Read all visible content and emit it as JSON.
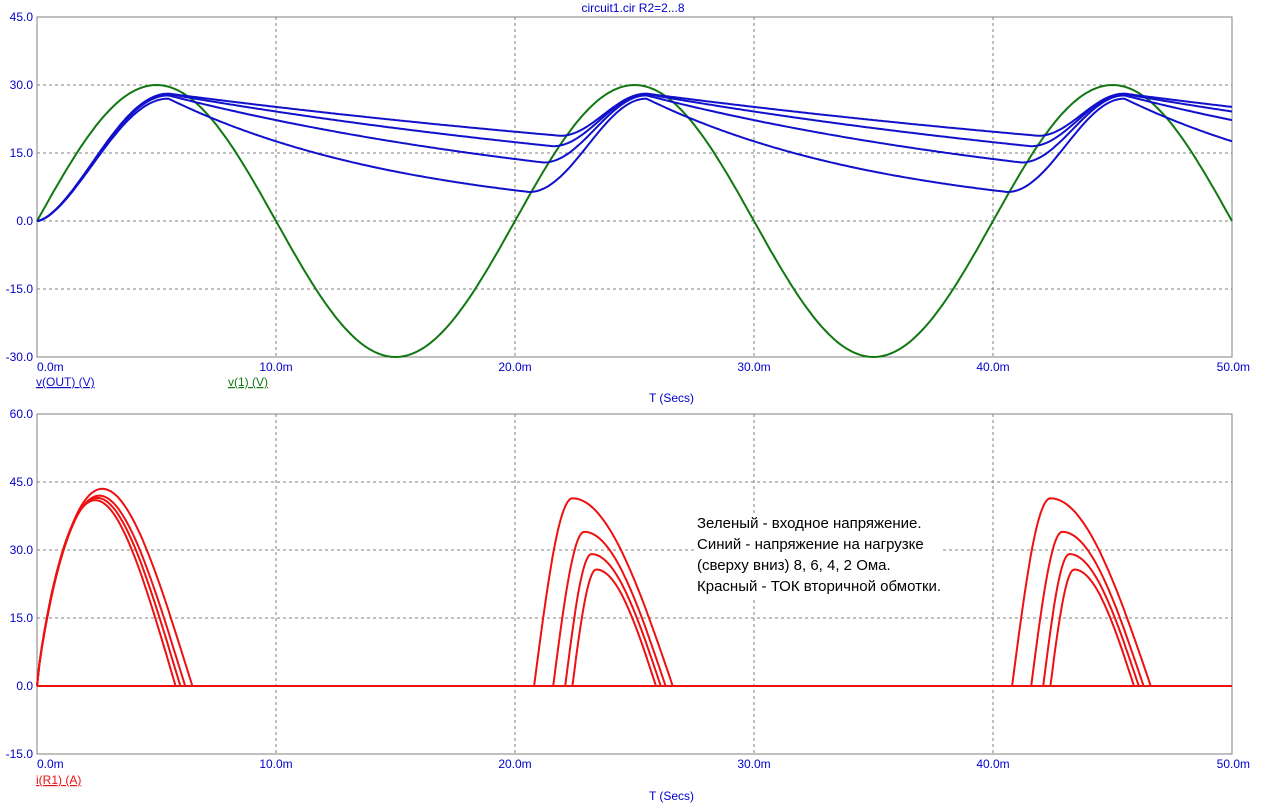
{
  "title": "circuit1.cir R2=2...8",
  "colors": {
    "axis_text": "#0000cc",
    "grid": "#808080",
    "frame": "#808080",
    "blue": "#1111cc",
    "green": "#117711",
    "red": "#ee1111"
  },
  "note_lines": [
    "Зеленый - входное напряжение.",
    "Синий - напряжение на нагрузке",
    "(сверху вниз) 8, 6, 4, 2 Ома.",
    "Красный - ТОК вторичной обмотки."
  ],
  "chart_data": [
    {
      "type": "line",
      "title": "circuit1.cir R2=2...8",
      "xlabel": "T (Secs)",
      "xlim": [
        0,
        0.05
      ],
      "ylim": [
        -30,
        45
      ],
      "xticks": [
        "0.0m",
        "10.0m",
        "20.0m",
        "30.0m",
        "40.0m",
        "50.0m"
      ],
      "yticks": [
        "45.0",
        "30.0",
        "15.0",
        "0.0",
        "-15.0",
        "-30.0"
      ],
      "legend": [
        {
          "label": "v(OUT) (V)",
          "color": "#1111cc"
        },
        {
          "label": "v(1) (V)",
          "color": "#117711"
        }
      ],
      "grid": true,
      "series": [
        {
          "name": "v(1) (V)",
          "color": "#117711",
          "model": "sine",
          "amplitude": 30,
          "frequency": 50
        },
        {
          "name": "v(OUT) (V)",
          "color": "#1111cc",
          "model": "rectifier_filter",
          "load_ohms": [
            8,
            6,
            4,
            2
          ],
          "peak_values": [
            28.1,
            28.0,
            27.7,
            27.0
          ],
          "trough_values": [
            18.8,
            16.5,
            12.9,
            6.4
          ],
          "recharge_start_ms": [
            21.9,
            21.6,
            21.2,
            20.6
          ]
        }
      ]
    },
    {
      "type": "line",
      "xlabel": "T (Secs)",
      "xlim": [
        0,
        0.05
      ],
      "ylim": [
        -15,
        60
      ],
      "xticks": [
        "0.0m",
        "10.0m",
        "20.0m",
        "30.0m",
        "40.0m",
        "50.0m"
      ],
      "yticks": [
        "60.0",
        "45.0",
        "30.0",
        "15.0",
        "0.0",
        "-15.0"
      ],
      "legend": [
        {
          "label": "i(R1) (A)",
          "color": "#ee1111"
        }
      ],
      "grid": true,
      "series": [
        {
          "name": "i(R1) (A)",
          "color": "#ee1111",
          "first_pulse_peaks": [
            43.5,
            42.0,
            41.5,
            41.0
          ],
          "first_pulse_end_ms": [
            6.5,
            6.2,
            6.0,
            5.8
          ],
          "pulses": [
            {
              "start_ms": 20.8,
              "peak_ms": 22.4,
              "peak": 41.4,
              "end_ms": 26.6
            },
            {
              "start_ms": 21.6,
              "peak_ms": 22.9,
              "peak": 34.0,
              "end_ms": 26.3
            },
            {
              "start_ms": 22.1,
              "peak_ms": 23.2,
              "peak": 29.1,
              "end_ms": 26.1
            },
            {
              "start_ms": 22.4,
              "peak_ms": 23.4,
              "peak": 25.7,
              "end_ms": 25.9
            },
            {
              "start_ms": 40.8,
              "peak_ms": 42.4,
              "peak": 41.4,
              "end_ms": 46.6
            },
            {
              "start_ms": 41.6,
              "peak_ms": 42.9,
              "peak": 34.0,
              "end_ms": 46.3
            },
            {
              "start_ms": 42.1,
              "peak_ms": 43.2,
              "peak": 29.1,
              "end_ms": 46.1
            },
            {
              "start_ms": 42.4,
              "peak_ms": 43.4,
              "peak": 25.7,
              "end_ms": 45.9
            }
          ]
        }
      ]
    }
  ]
}
